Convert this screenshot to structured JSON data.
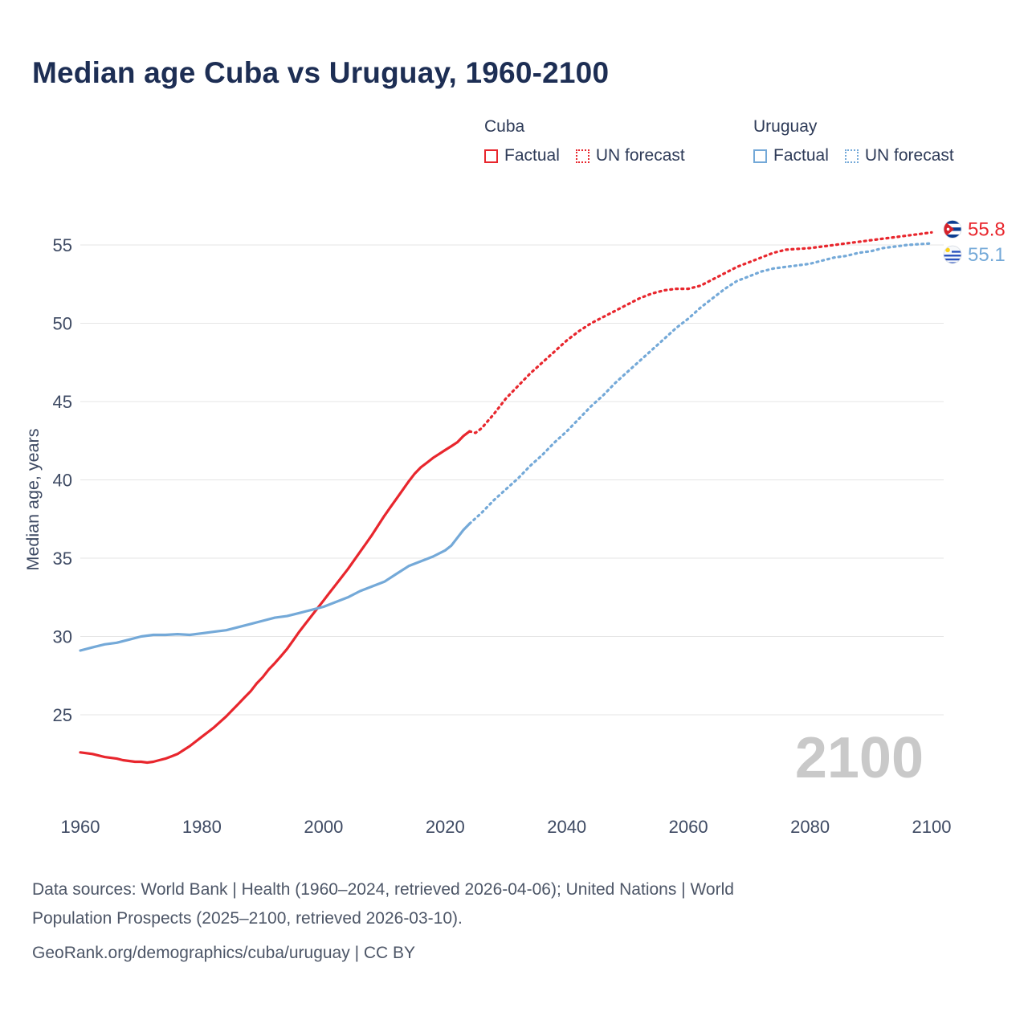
{
  "title": "Median age Cuba vs Uruguay, 1960-2100",
  "legend": {
    "groups": [
      {
        "name": "Cuba",
        "color": "#e8262d",
        "items": [
          {
            "label": "Factual",
            "style": "solid"
          },
          {
            "label": "UN forecast",
            "style": "dotted"
          }
        ]
      },
      {
        "name": "Uruguay",
        "color": "#74a9d8",
        "items": [
          {
            "label": "Factual",
            "style": "solid"
          },
          {
            "label": "UN forecast",
            "style": "dotted"
          }
        ]
      }
    ]
  },
  "chart_data": {
    "type": "line",
    "title": "Median age Cuba vs Uruguay, 1960-2100",
    "xlabel": "",
    "ylabel": "Median age, years",
    "xlim": [
      1960,
      2100
    ],
    "ylim": [
      25,
      55
    ],
    "xticks": [
      1960,
      1980,
      2000,
      2020,
      2040,
      2060,
      2080,
      2100
    ],
    "yticks": [
      25,
      30,
      35,
      40,
      45,
      50,
      55
    ],
    "grid": "horizontal",
    "legend_position": "top-right",
    "watermark": "2100",
    "colors": {
      "cuba": "#e8262d",
      "uruguay": "#74a9d8",
      "grid": "#e5e5e5",
      "axis_text": "#3e4a63",
      "watermark": "#c9c9c9"
    },
    "series": [
      {
        "name": "Cuba Factual",
        "color": "#e8262d",
        "style": "solid",
        "points": [
          [
            1960,
            22.6
          ],
          [
            1961,
            22.55
          ],
          [
            1962,
            22.5
          ],
          [
            1963,
            22.4
          ],
          [
            1964,
            22.3
          ],
          [
            1965,
            22.25
          ],
          [
            1966,
            22.2
          ],
          [
            1967,
            22.1
          ],
          [
            1968,
            22.05
          ],
          [
            1969,
            22.0
          ],
          [
            1970,
            22.0
          ],
          [
            1971,
            21.95
          ],
          [
            1972,
            22.0
          ],
          [
            1973,
            22.1
          ],
          [
            1974,
            22.2
          ],
          [
            1975,
            22.35
          ],
          [
            1976,
            22.5
          ],
          [
            1977,
            22.75
          ],
          [
            1978,
            23.0
          ],
          [
            1979,
            23.3
          ],
          [
            1980,
            23.6
          ],
          [
            1981,
            23.9
          ],
          [
            1982,
            24.2
          ],
          [
            1983,
            24.55
          ],
          [
            1984,
            24.9
          ],
          [
            1985,
            25.3
          ],
          [
            1986,
            25.7
          ],
          [
            1987,
            26.1
          ],
          [
            1988,
            26.5
          ],
          [
            1989,
            27.0
          ],
          [
            1990,
            27.4
          ],
          [
            1991,
            27.9
          ],
          [
            1992,
            28.3
          ],
          [
            1993,
            28.75
          ],
          [
            1994,
            29.2
          ],
          [
            1995,
            29.75
          ],
          [
            1996,
            30.3
          ],
          [
            1997,
            30.8
          ],
          [
            1998,
            31.3
          ],
          [
            1999,
            31.8
          ],
          [
            2000,
            32.3
          ],
          [
            2001,
            32.8
          ],
          [
            2002,
            33.3
          ],
          [
            2003,
            33.8
          ],
          [
            2004,
            34.3
          ],
          [
            2005,
            34.85
          ],
          [
            2006,
            35.4
          ],
          [
            2007,
            35.95
          ],
          [
            2008,
            36.5
          ],
          [
            2009,
            37.1
          ],
          [
            2010,
            37.7
          ],
          [
            2011,
            38.25
          ],
          [
            2012,
            38.8
          ],
          [
            2013,
            39.35
          ],
          [
            2014,
            39.9
          ],
          [
            2015,
            40.4
          ],
          [
            2016,
            40.8
          ],
          [
            2017,
            41.1
          ],
          [
            2018,
            41.4
          ],
          [
            2019,
            41.65
          ],
          [
            2020,
            41.9
          ],
          [
            2021,
            42.15
          ],
          [
            2022,
            42.4
          ],
          [
            2023,
            42.8
          ],
          [
            2024,
            43.1
          ]
        ]
      },
      {
        "name": "Cuba UN forecast",
        "color": "#e8262d",
        "style": "dotted",
        "points": [
          [
            2024,
            43.1
          ],
          [
            2025,
            43.0
          ],
          [
            2026,
            43.3
          ],
          [
            2028,
            44.2
          ],
          [
            2030,
            45.2
          ],
          [
            2032,
            46.0
          ],
          [
            2034,
            46.8
          ],
          [
            2036,
            47.5
          ],
          [
            2038,
            48.2
          ],
          [
            2040,
            48.9
          ],
          [
            2042,
            49.5
          ],
          [
            2044,
            50.0
          ],
          [
            2046,
            50.4
          ],
          [
            2048,
            50.8
          ],
          [
            2050,
            51.2
          ],
          [
            2052,
            51.6
          ],
          [
            2054,
            51.9
          ],
          [
            2056,
            52.1
          ],
          [
            2058,
            52.2
          ],
          [
            2060,
            52.2
          ],
          [
            2062,
            52.4
          ],
          [
            2064,
            52.8
          ],
          [
            2066,
            53.2
          ],
          [
            2068,
            53.6
          ],
          [
            2070,
            53.9
          ],
          [
            2072,
            54.2
          ],
          [
            2074,
            54.5
          ],
          [
            2076,
            54.7
          ],
          [
            2078,
            54.75
          ],
          [
            2080,
            54.8
          ],
          [
            2082,
            54.9
          ],
          [
            2084,
            55.0
          ],
          [
            2086,
            55.1
          ],
          [
            2088,
            55.2
          ],
          [
            2090,
            55.3
          ],
          [
            2092,
            55.4
          ],
          [
            2094,
            55.5
          ],
          [
            2096,
            55.6
          ],
          [
            2098,
            55.7
          ],
          [
            2100,
            55.8
          ]
        ]
      },
      {
        "name": "Uruguay Factual",
        "color": "#74a9d8",
        "style": "solid",
        "points": [
          [
            1960,
            29.1
          ],
          [
            1962,
            29.3
          ],
          [
            1964,
            29.5
          ],
          [
            1966,
            29.6
          ],
          [
            1968,
            29.8
          ],
          [
            1970,
            30.0
          ],
          [
            1972,
            30.1
          ],
          [
            1974,
            30.1
          ],
          [
            1976,
            30.15
          ],
          [
            1978,
            30.1
          ],
          [
            1980,
            30.2
          ],
          [
            1982,
            30.3
          ],
          [
            1984,
            30.4
          ],
          [
            1986,
            30.6
          ],
          [
            1988,
            30.8
          ],
          [
            1990,
            31.0
          ],
          [
            1992,
            31.2
          ],
          [
            1994,
            31.3
          ],
          [
            1996,
            31.5
          ],
          [
            1998,
            31.7
          ],
          [
            2000,
            31.9
          ],
          [
            2002,
            32.2
          ],
          [
            2004,
            32.5
          ],
          [
            2006,
            32.9
          ],
          [
            2008,
            33.2
          ],
          [
            2010,
            33.5
          ],
          [
            2012,
            34.0
          ],
          [
            2014,
            34.5
          ],
          [
            2016,
            34.8
          ],
          [
            2018,
            35.1
          ],
          [
            2020,
            35.5
          ],
          [
            2021,
            35.8
          ],
          [
            2022,
            36.3
          ],
          [
            2023,
            36.8
          ],
          [
            2024,
            37.2
          ]
        ]
      },
      {
        "name": "Uruguay UN forecast",
        "color": "#74a9d8",
        "style": "dotted",
        "points": [
          [
            2024,
            37.2
          ],
          [
            2026,
            37.9
          ],
          [
            2028,
            38.7
          ],
          [
            2030,
            39.4
          ],
          [
            2032,
            40.1
          ],
          [
            2034,
            40.9
          ],
          [
            2036,
            41.6
          ],
          [
            2038,
            42.4
          ],
          [
            2040,
            43.1
          ],
          [
            2042,
            43.9
          ],
          [
            2044,
            44.7
          ],
          [
            2046,
            45.4
          ],
          [
            2048,
            46.2
          ],
          [
            2050,
            46.9
          ],
          [
            2052,
            47.6
          ],
          [
            2054,
            48.3
          ],
          [
            2056,
            49.0
          ],
          [
            2058,
            49.7
          ],
          [
            2060,
            50.3
          ],
          [
            2062,
            51.0
          ],
          [
            2064,
            51.6
          ],
          [
            2066,
            52.2
          ],
          [
            2068,
            52.7
          ],
          [
            2070,
            53.0
          ],
          [
            2072,
            53.3
          ],
          [
            2074,
            53.5
          ],
          [
            2076,
            53.6
          ],
          [
            2078,
            53.7
          ],
          [
            2080,
            53.8
          ],
          [
            2082,
            54.0
          ],
          [
            2084,
            54.2
          ],
          [
            2086,
            54.3
          ],
          [
            2088,
            54.5
          ],
          [
            2090,
            54.6
          ],
          [
            2092,
            54.8
          ],
          [
            2094,
            54.9
          ],
          [
            2096,
            55.0
          ],
          [
            2098,
            55.05
          ],
          [
            2100,
            55.1
          ]
        ]
      }
    ],
    "end_labels": [
      {
        "value": "55.8",
        "numeric": 55.8,
        "color": "#e8262d",
        "flag": "cuba",
        "dy": -4
      },
      {
        "value": "55.1",
        "numeric": 55.1,
        "color": "#74a9d8",
        "flag": "uruguay",
        "dy": 14
      }
    ]
  },
  "footer": {
    "lines": [
      "Data sources: World Bank | Health (1960–2024, retrieved 2026-04-06); United Nations | World",
      "Population Prospects (2025–2100, retrieved 2026-03-10).",
      "GeoRank.org/demographics/cuba/uruguay | CC BY"
    ]
  }
}
